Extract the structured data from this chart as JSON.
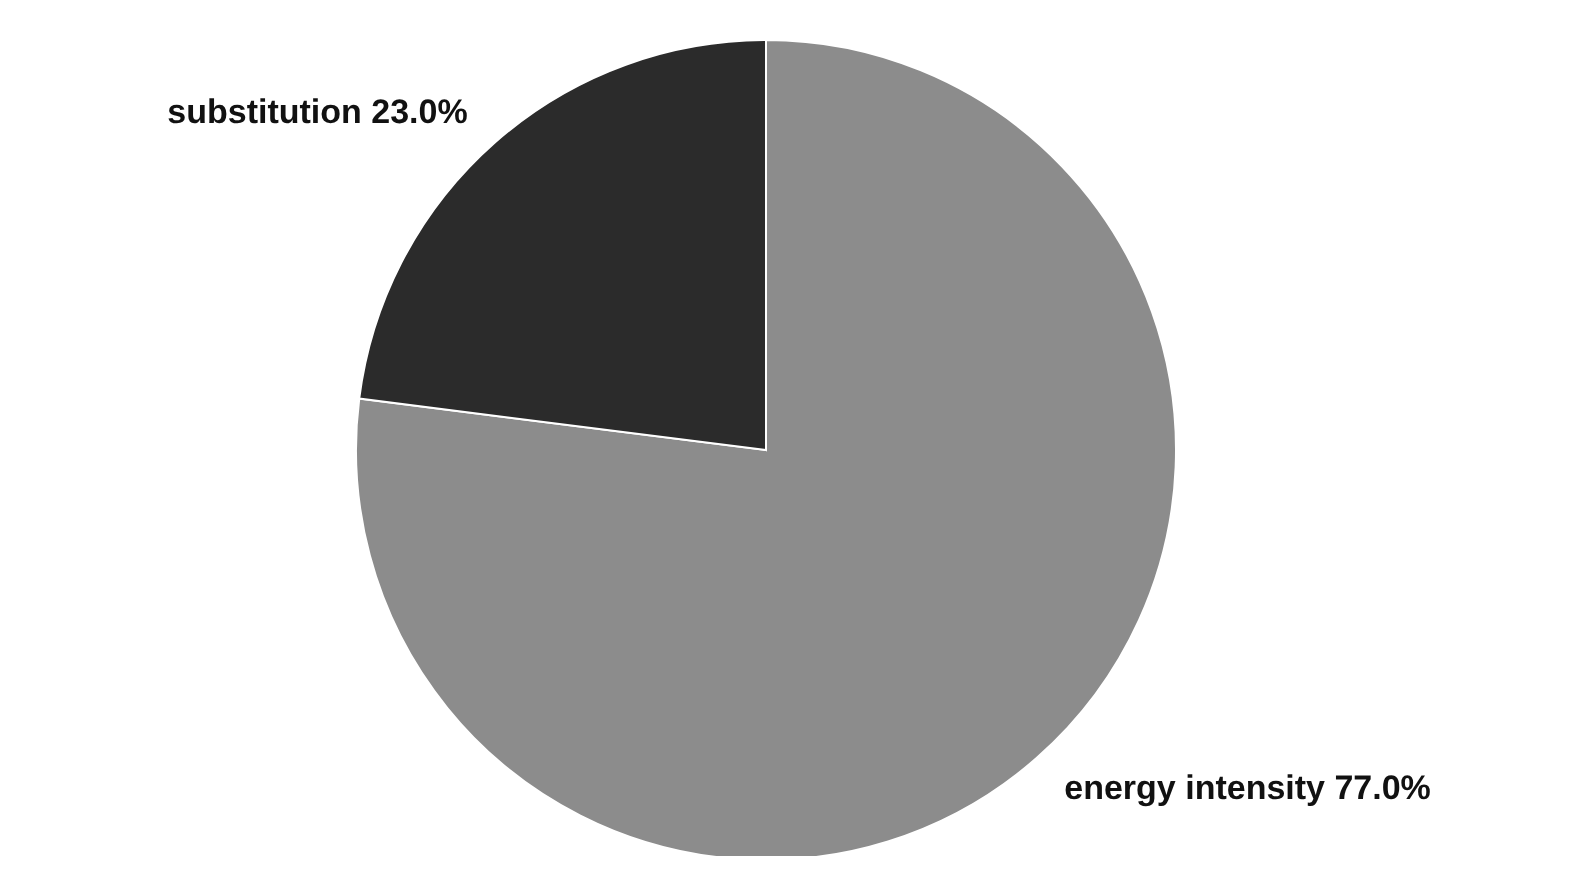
{
  "chart_data": {
    "type": "pie",
    "categories": [
      "energy intensity",
      "substitution"
    ],
    "values": [
      77.0,
      23.0
    ],
    "colors": [
      "#8c8c8c",
      "#2b2b2b"
    ],
    "value_labels": [
      "77.0%",
      "23.0%"
    ]
  }
}
